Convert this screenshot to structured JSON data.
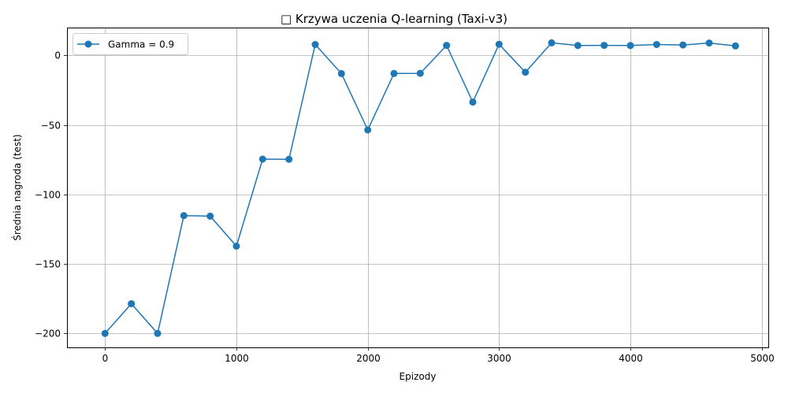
{
  "chart_data": {
    "type": "line",
    "title": "□ Krzywa uczenia Q-learning (Taxi-v3)",
    "xlabel": "Epizody",
    "ylabel": "Średnia nagroda (test)",
    "xlim": [
      -290,
      5050
    ],
    "ylim": [
      -210,
      20
    ],
    "xticks": [
      0,
      1000,
      2000,
      3000,
      4000,
      5000
    ],
    "yticks": [
      -200,
      -150,
      -100,
      -50,
      0
    ],
    "xtick_labels": [
      "0",
      "1000",
      "2000",
      "3000",
      "4000",
      "5000"
    ],
    "ytick_labels": [
      "−200",
      "−150",
      "−100",
      "−50",
      "0"
    ],
    "grid": true,
    "legend_position": "upper-left",
    "series": [
      {
        "name": "Gamma = 0.9",
        "color": "#1f77b4",
        "marker": "circle",
        "x": [
          0,
          200,
          400,
          600,
          800,
          1000,
          1200,
          1400,
          1600,
          1800,
          2000,
          2200,
          2400,
          2600,
          2800,
          3000,
          3200,
          3400,
          3600,
          3800,
          4000,
          4200,
          4400,
          4600,
          4800
        ],
        "y": [
          -200,
          -178.6,
          -200,
          -115.2,
          -115.6,
          -137.2,
          -74.6,
          -74.7,
          7.8,
          -13.1,
          -53.6,
          -13.0,
          -12.9,
          7.2,
          -33.6,
          8.0,
          -12.1,
          9.0,
          7.1,
          7.2,
          7.1,
          7.8,
          7.5,
          8.9,
          6.8
        ]
      }
    ]
  }
}
